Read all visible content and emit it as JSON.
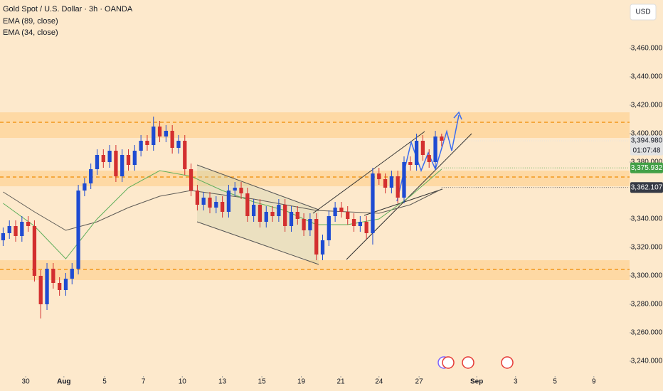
{
  "chart_data": {
    "type": "candlestick",
    "title": "Gold Spot / U.S. Dollar · 3h · OANDA",
    "currency": "USD",
    "up_color": "#1e4bd2",
    "down_color": "#d32f2f",
    "xlim": [
      -0.5,
      100
    ],
    "ylim": [
      3231.5,
      3494
    ],
    "xticks": [
      {
        "value": 3.6,
        "label": "30"
      },
      {
        "value": 9.7,
        "label": "Aug"
      },
      {
        "value": 16.2,
        "label": "5"
      },
      {
        "value": 22.4,
        "label": "7"
      },
      {
        "value": 28.6,
        "label": "10"
      },
      {
        "value": 35.0,
        "label": "13"
      },
      {
        "value": 41.3,
        "label": "15"
      },
      {
        "value": 47.6,
        "label": "19"
      },
      {
        "value": 53.9,
        "label": "21"
      },
      {
        "value": 60.0,
        "label": "24"
      },
      {
        "value": 66.4,
        "label": "27"
      },
      {
        "value": 75.6,
        "label": "Sep"
      },
      {
        "value": 81.8,
        "label": "3"
      },
      {
        "value": 88.1,
        "label": "5"
      },
      {
        "value": 94.3,
        "label": "9"
      }
    ],
    "yticks": [
      {
        "value": 3240,
        "label": "3,240.000"
      },
      {
        "value": 3260,
        "label": "3,260.000"
      },
      {
        "value": 3280,
        "label": "3,280.000"
      },
      {
        "value": 3300,
        "label": "3,300.000"
      },
      {
        "value": 3320,
        "label": "3,320.000"
      },
      {
        "value": 3340,
        "label": "3,340.000"
      },
      {
        "value": 3380,
        "label": "3,380.000"
      },
      {
        "value": 3400,
        "label": "3,400.000"
      },
      {
        "value": 3420,
        "label": "3,420.000"
      },
      {
        "value": 3440,
        "label": "3,440.000"
      },
      {
        "value": 3460,
        "label": "3,460.000"
      }
    ],
    "open": [
      3325,
      3330,
      3335,
      3328,
      3338,
      3335,
      3300,
      3280,
      3305,
      3295,
      3290,
      3298,
      3305,
      3360,
      3365,
      3375,
      3385,
      3380,
      3388,
      3370,
      3385,
      3378,
      3388,
      3395,
      3392,
      3405,
      3398,
      3402,
      3390,
      3395,
      3375,
      3360,
      3350,
      3355,
      3348,
      3352,
      3345,
      3360,
      3362,
      3358,
      3342,
      3350,
      3338,
      3345,
      3342,
      3350,
      3335,
      3345,
      3340,
      3332,
      3340,
      3315,
      3325,
      3342,
      3348,
      3345,
      3340,
      3335,
      3338,
      3330,
      3372,
      3368,
      3362,
      3370,
      3355,
      3380,
      3378,
      3395,
      3385,
      3380,
      3398
    ],
    "high": [
      3334,
      3339,
      3339,
      3342,
      3342,
      3339,
      3304,
      3309,
      3309,
      3299,
      3302,
      3309,
      3364,
      3369,
      3379,
      3389,
      3389,
      3392,
      3392,
      3389,
      3389,
      3392,
      3399,
      3399,
      3412,
      3409,
      3406,
      3406,
      3399,
      3399,
      3379,
      3364,
      3359,
      3359,
      3356,
      3356,
      3364,
      3366,
      3366,
      3362,
      3354,
      3354,
      3349,
      3349,
      3354,
      3354,
      3349,
      3349,
      3344,
      3344,
      3344,
      3329,
      3346,
      3352,
      3352,
      3349,
      3344,
      3342,
      3342,
      3376,
      3376,
      3372,
      3374,
      3374,
      3384,
      3384,
      3400,
      3399,
      3389,
      3402,
      3400
    ],
    "low": [
      3321,
      3326,
      3324,
      3324,
      3331,
      3296,
      3270,
      3276,
      3291,
      3286,
      3286,
      3294,
      3301,
      3356,
      3361,
      3371,
      3376,
      3376,
      3366,
      3366,
      3374,
      3374,
      3384,
      3388,
      3388,
      3394,
      3394,
      3386,
      3386,
      3371,
      3356,
      3346,
      3346,
      3344,
      3344,
      3341,
      3341,
      3356,
      3354,
      3338,
      3338,
      3334,
      3334,
      3338,
      3338,
      3331,
      3331,
      3336,
      3328,
      3328,
      3311,
      3311,
      3321,
      3338,
      3341,
      3336,
      3331,
      3331,
      3326,
      3322,
      3364,
      3358,
      3358,
      3351,
      3351,
      3374,
      3374,
      3381,
      3376,
      3376,
      3391
    ],
    "close": [
      3330,
      3335,
      3328,
      3338,
      3335,
      3300,
      3280,
      3305,
      3295,
      3290,
      3298,
      3305,
      3360,
      3365,
      3375,
      3385,
      3380,
      3388,
      3370,
      3385,
      3378,
      3388,
      3395,
      3392,
      3405,
      3398,
      3402,
      3390,
      3395,
      3375,
      3360,
      3350,
      3355,
      3348,
      3352,
      3345,
      3360,
      3362,
      3358,
      3342,
      3350,
      3338,
      3345,
      3342,
      3350,
      3335,
      3345,
      3340,
      3332,
      3340,
      3315,
      3325,
      3342,
      3348,
      3345,
      3340,
      3335,
      3338,
      3330,
      3372,
      3368,
      3362,
      3370,
      3355,
      3380,
      3378,
      3395,
      3385,
      3380,
      3398,
      3394.98
    ],
    "series": [
      {
        "name": "EMA (89, close)",
        "color": "#5d5a55",
        "x": [
          0,
          5,
          10,
          15,
          20,
          25,
          30,
          35,
          40,
          45,
          50,
          55,
          60,
          65,
          70
        ],
        "values": [
          3359,
          3345,
          3332,
          3338,
          3348,
          3356,
          3360,
          3357,
          3354,
          3350,
          3346,
          3345,
          3344,
          3350,
          3361
        ]
      },
      {
        "name": "EMA (34, close)",
        "color": "#5fae5b",
        "x": [
          0,
          5,
          10,
          15,
          20,
          25,
          30,
          35,
          40,
          45,
          50,
          55,
          60,
          65,
          70
        ],
        "values": [
          3351,
          3335,
          3312,
          3340,
          3362,
          3374,
          3370,
          3360,
          3352,
          3346,
          3336,
          3336,
          3340,
          3356,
          3375
        ]
      }
    ],
    "zones": [
      {
        "low": 3397,
        "high": 3415
      },
      {
        "low": 3363,
        "high": 3374
      },
      {
        "low": 3297,
        "high": 3311
      }
    ],
    "levels": [
      3408,
      3369.5,
      3304.5
    ],
    "price_labels": [
      {
        "value": 3394.98,
        "label": "3,394.980",
        "color": "#e3e3e3",
        "text_color": "#131722"
      },
      {
        "value": 3375.932,
        "label": "3,375.932",
        "color": "#43a047",
        "text_color": "#ffffff"
      },
      {
        "value": 3362.107,
        "label": "3,362.107",
        "color": "#363a45",
        "text_color": "#ffffff"
      }
    ],
    "countdown": "01:07:48"
  }
}
